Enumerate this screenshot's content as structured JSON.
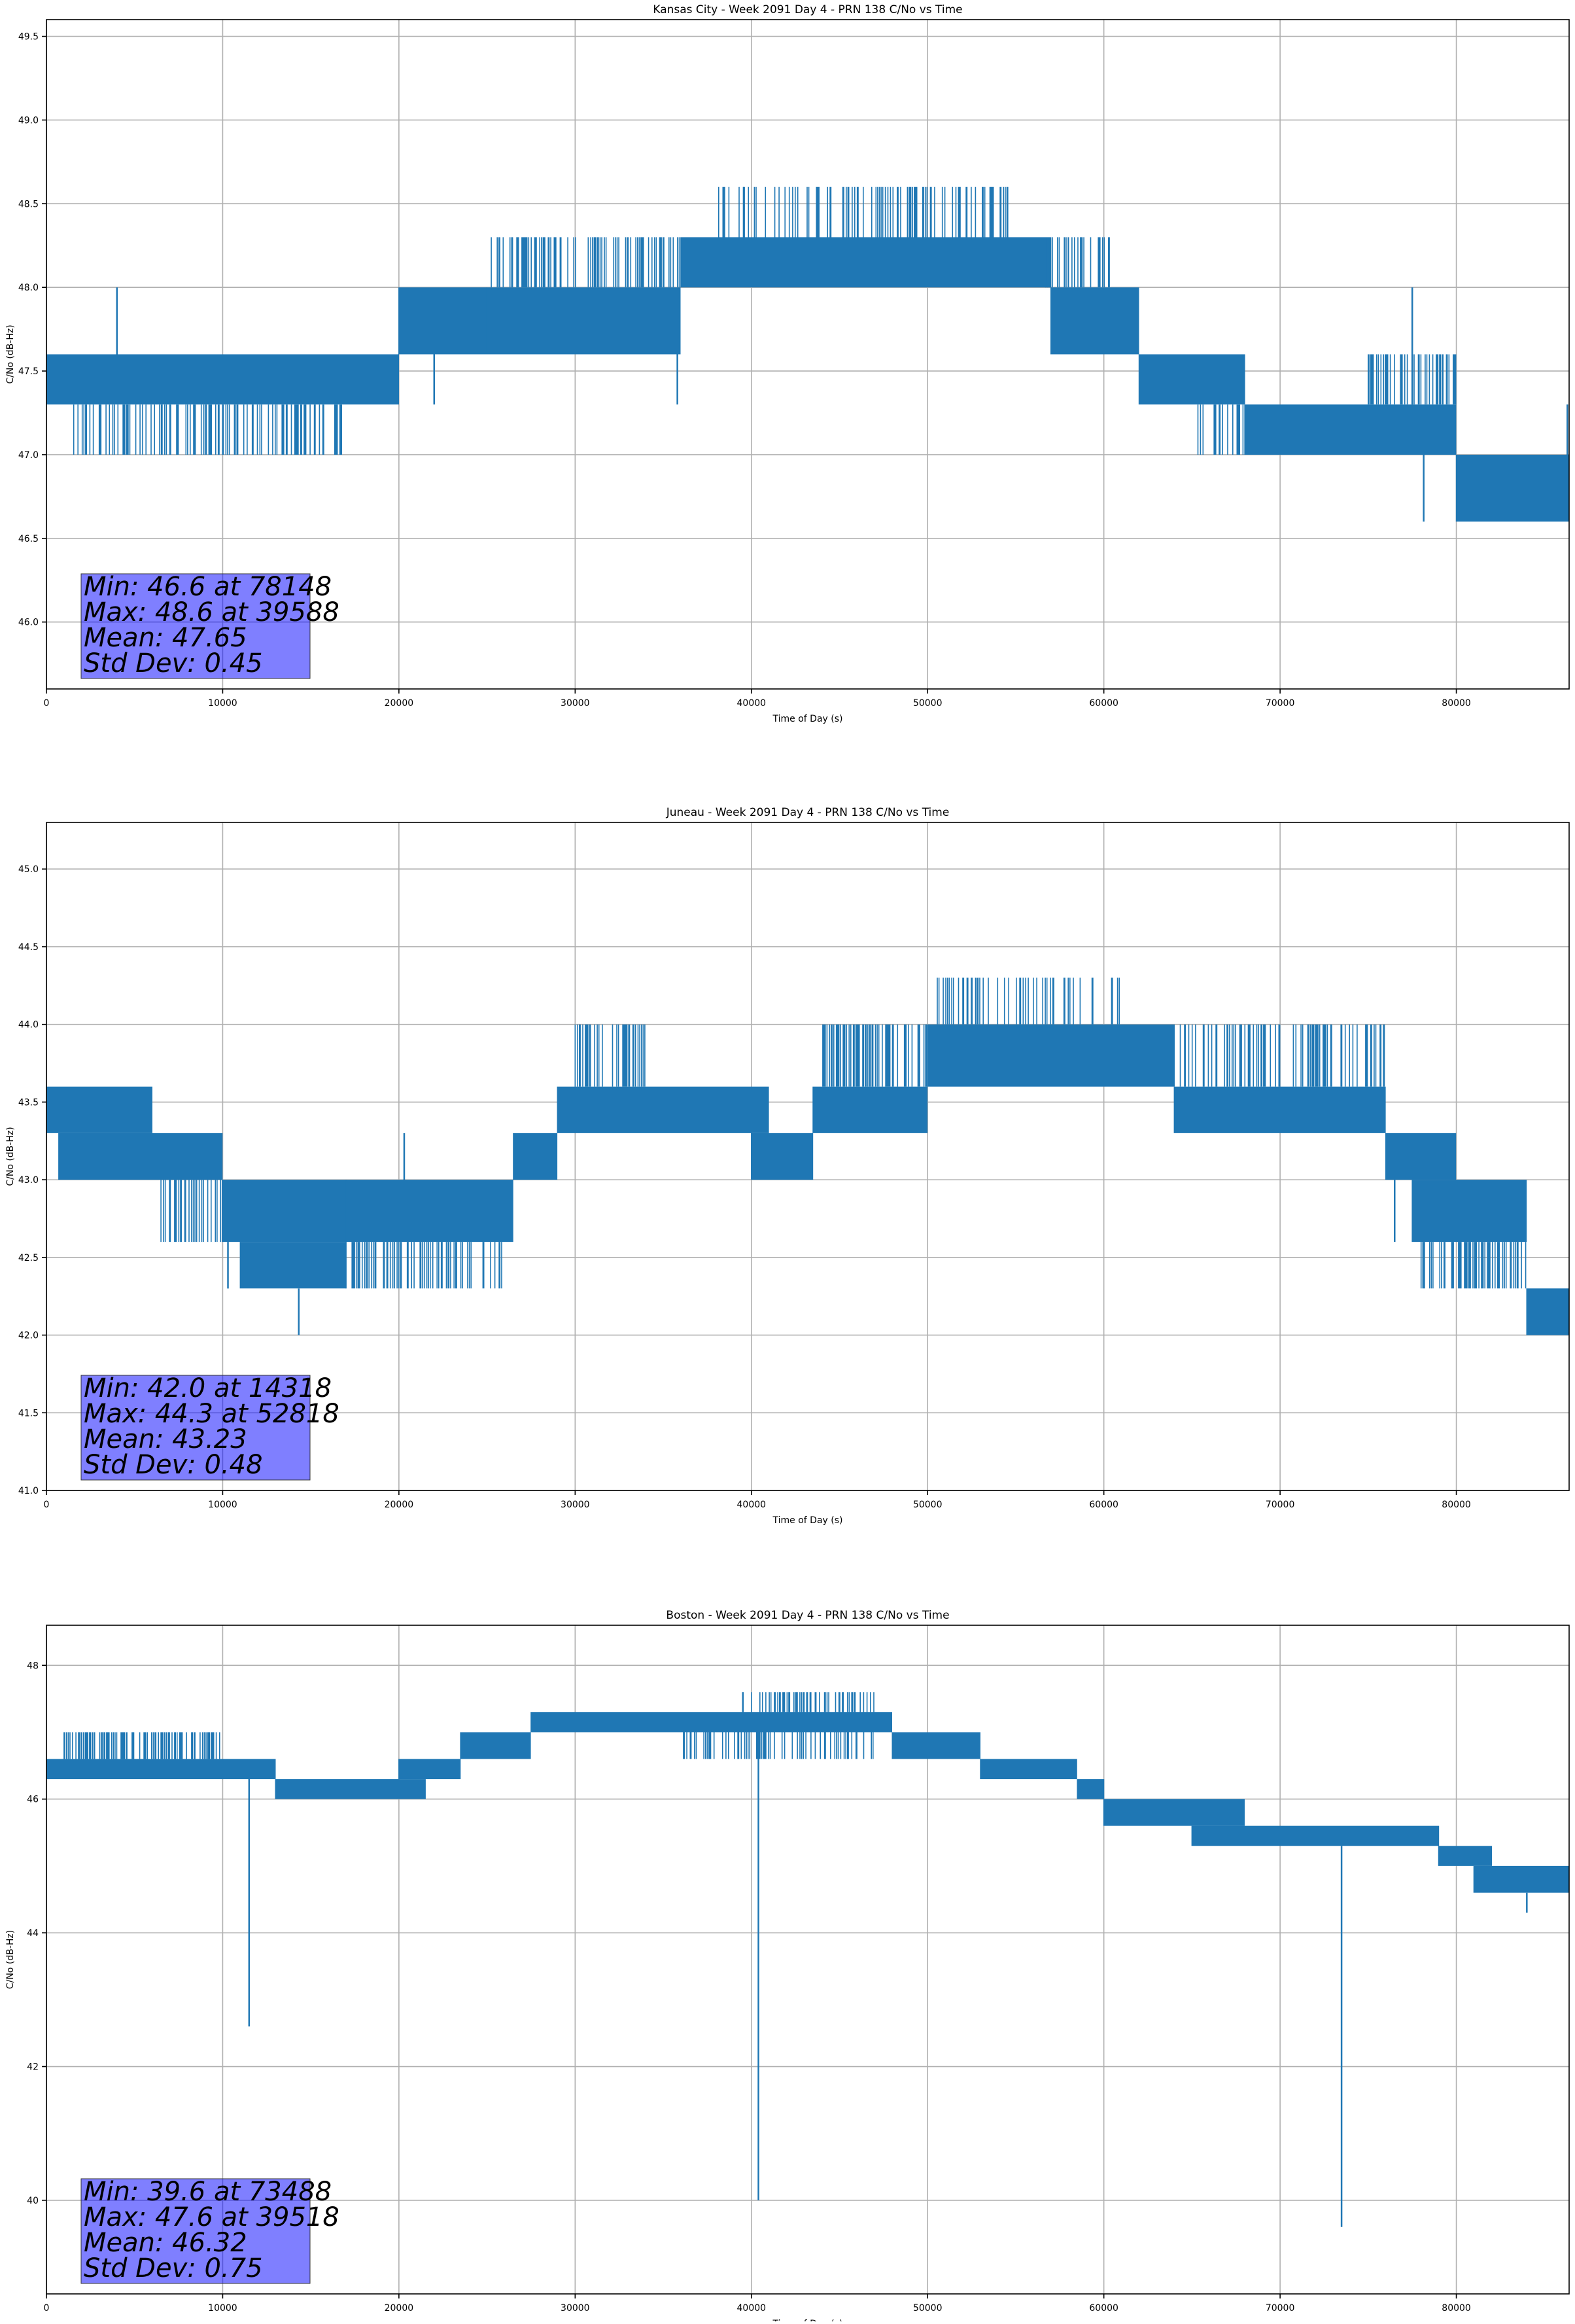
{
  "colors": {
    "line": "#1f77b4",
    "grid": "#b0b0b0",
    "axis": "#000000",
    "stats_box_fill": "#0000ff",
    "stats_box_alpha": 0.5
  },
  "chart_data": [
    {
      "type": "line",
      "title": "Kansas City - Week 2091 Day 4 - PRN 138 C/No vs Time",
      "xlabel": "Time of Day (s)",
      "ylabel": "C/No (dB-Hz)",
      "xlim": [
        0,
        86400
      ],
      "ylim": [
        45.6,
        49.6
      ],
      "xticks": [
        0,
        10000,
        20000,
        30000,
        40000,
        50000,
        60000,
        70000,
        80000
      ],
      "yticks": [
        46.0,
        46.5,
        47.0,
        47.5,
        48.0,
        48.5,
        49.0,
        49.5
      ],
      "ytick_decimals": 1,
      "grid": true,
      "stats": [
        "Min: 46.6 at 78148",
        "Max: 48.6 at 39588",
        "Mean: 47.65",
        "Std Dev: 0.45"
      ],
      "series": [
        {
          "segments": [
            {
              "x0": 0,
              "x1": 20000,
              "lo": 47.3,
              "hi": 47.6
            },
            {
              "x0": 1500,
              "x1": 17000,
              "lo": 47.0,
              "hi": 47.3,
              "density": 0.35
            },
            {
              "x0": 20000,
              "x1": 25000,
              "lo": 47.6,
              "hi": 48.0
            },
            {
              "x0": 25000,
              "x1": 36000,
              "lo": 47.6,
              "hi": 48.0
            },
            {
              "x0": 25000,
              "x1": 36000,
              "lo": 48.0,
              "hi": 48.3,
              "density": 0.35
            },
            {
              "x0": 36000,
              "x1": 57000,
              "lo": 48.0,
              "hi": 48.3
            },
            {
              "x0": 38000,
              "x1": 55000,
              "lo": 48.3,
              "hi": 48.6,
              "density": 0.25
            },
            {
              "x0": 57000,
              "x1": 62000,
              "lo": 47.6,
              "hi": 48.0
            },
            {
              "x0": 56500,
              "x1": 60500,
              "lo": 48.0,
              "hi": 48.3,
              "density": 0.4
            },
            {
              "x0": 62000,
              "x1": 68000,
              "lo": 47.3,
              "hi": 47.6
            },
            {
              "x0": 65000,
              "x1": 68000,
              "lo": 47.0,
              "hi": 47.3,
              "density": 0.3
            },
            {
              "x0": 68000,
              "x1": 80000,
              "lo": 47.0,
              "hi": 47.3
            },
            {
              "x0": 75000,
              "x1": 80000,
              "lo": 47.3,
              "hi": 47.6,
              "density": 0.4
            },
            {
              "x0": 80000,
              "x1": 86400,
              "lo": 46.6,
              "hi": 47.0
            }
          ],
          "spikes": [
            {
              "x": 4000,
              "y": 48.0
            },
            {
              "x": 22000,
              "y": 47.3
            },
            {
              "x": 35800,
              "y": 47.3
            },
            {
              "x": 39588,
              "y": 48.6
            },
            {
              "x": 77500,
              "y": 48.0
            },
            {
              "x": 78148,
              "y": 46.6
            },
            {
              "x": 86300,
              "y": 47.3
            }
          ]
        }
      ]
    },
    {
      "type": "line",
      "title": "Juneau - Week 2091 Day 4 - PRN 138 C/No vs Time",
      "xlabel": "Time of Day (s)",
      "ylabel": "C/No (dB-Hz)",
      "xlim": [
        0,
        86400
      ],
      "ylim": [
        41.0,
        45.3
      ],
      "xticks": [
        0,
        10000,
        20000,
        30000,
        40000,
        50000,
        60000,
        70000,
        80000
      ],
      "yticks": [
        41.0,
        41.5,
        42.0,
        42.5,
        43.0,
        43.5,
        44.0,
        44.5,
        45.0
      ],
      "ytick_decimals": 1,
      "grid": true,
      "stats": [
        "Min: 42.0 at 14318",
        "Max: 44.3 at 52818",
        "Mean: 43.23",
        "Std Dev: 0.48"
      ],
      "series": [
        {
          "segments": [
            {
              "x0": 0,
              "x1": 6000,
              "lo": 43.3,
              "hi": 43.6
            },
            {
              "x0": 700,
              "x1": 10000,
              "lo": 43.0,
              "hi": 43.3
            },
            {
              "x0": 6500,
              "x1": 10000,
              "lo": 42.6,
              "hi": 43.0,
              "density": 0.4
            },
            {
              "x0": 10000,
              "x1": 17000,
              "lo": 42.6,
              "hi": 43.0
            },
            {
              "x0": 11000,
              "x1": 17000,
              "lo": 42.3,
              "hi": 42.6
            },
            {
              "x0": 17000,
              "x1": 26500,
              "lo": 42.6,
              "hi": 43.0
            },
            {
              "x0": 17000,
              "x1": 26000,
              "lo": 42.3,
              "hi": 42.6,
              "density": 0.35
            },
            {
              "x0": 26500,
              "x1": 29000,
              "lo": 43.0,
              "hi": 43.3
            },
            {
              "x0": 29000,
              "x1": 41000,
              "lo": 43.3,
              "hi": 43.6
            },
            {
              "x0": 30000,
              "x1": 34000,
              "lo": 43.6,
              "hi": 44.0,
              "density": 0.4
            },
            {
              "x0": 40000,
              "x1": 43500,
              "lo": 43.0,
              "hi": 43.3
            },
            {
              "x0": 43500,
              "x1": 50000,
              "lo": 43.3,
              "hi": 43.6
            },
            {
              "x0": 44000,
              "x1": 50000,
              "lo": 43.6,
              "hi": 44.0,
              "density": 0.4
            },
            {
              "x0": 50000,
              "x1": 64000,
              "lo": 43.6,
              "hi": 44.0
            },
            {
              "x0": 50500,
              "x1": 61000,
              "lo": 44.0,
              "hi": 44.3,
              "density": 0.2
            },
            {
              "x0": 64000,
              "x1": 76000,
              "lo": 43.3,
              "hi": 43.6
            },
            {
              "x0": 64000,
              "x1": 76000,
              "lo": 43.6,
              "hi": 44.0,
              "density": 0.3
            },
            {
              "x0": 76000,
              "x1": 80000,
              "lo": 43.0,
              "hi": 43.3
            },
            {
              "x0": 77500,
              "x1": 84000,
              "lo": 42.6,
              "hi": 43.0
            },
            {
              "x0": 78000,
              "x1": 84000,
              "lo": 42.3,
              "hi": 42.6,
              "density": 0.5
            },
            {
              "x0": 84000,
              "x1": 86400,
              "lo": 42.0,
              "hi": 42.3
            }
          ],
          "spikes": [
            {
              "x": 10300,
              "y": 42.3
            },
            {
              "x": 14318,
              "y": 42.0
            },
            {
              "x": 20300,
              "y": 43.3
            },
            {
              "x": 52818,
              "y": 44.3
            },
            {
              "x": 76500,
              "y": 42.6
            }
          ]
        }
      ]
    },
    {
      "type": "line",
      "title": "Boston - Week 2091 Day 4 - PRN 138 C/No vs Time",
      "xlabel": "Time of Day (s)",
      "ylabel": "C/No (dB-Hz)",
      "xlim": [
        0,
        86400
      ],
      "ylim": [
        38.6,
        48.6
      ],
      "xticks": [
        0,
        10000,
        20000,
        30000,
        40000,
        50000,
        60000,
        70000,
        80000
      ],
      "yticks": [
        40,
        42,
        44,
        46,
        48
      ],
      "ytick_decimals": 0,
      "grid": true,
      "stats": [
        "Min: 39.6 at 73488",
        "Max: 47.6 at 39518",
        "Mean: 46.32",
        "Std Dev: 0.75"
      ],
      "series": [
        {
          "segments": [
            {
              "x0": 0,
              "x1": 13000,
              "lo": 46.3,
              "hi": 46.6
            },
            {
              "x0": 1000,
              "x1": 10000,
              "lo": 46.6,
              "hi": 47.0,
              "density": 0.5
            },
            {
              "x0": 13000,
              "x1": 21500,
              "lo": 46.0,
              "hi": 46.3
            },
            {
              "x0": 20000,
              "x1": 23500,
              "lo": 46.3,
              "hi": 46.6
            },
            {
              "x0": 23500,
              "x1": 27500,
              "lo": 46.6,
              "hi": 47.0
            },
            {
              "x0": 27500,
              "x1": 48000,
              "lo": 47.0,
              "hi": 47.3
            },
            {
              "x0": 36000,
              "x1": 47000,
              "lo": 46.6,
              "hi": 47.0,
              "density": 0.35
            },
            {
              "x0": 40000,
              "x1": 47000,
              "lo": 47.3,
              "hi": 47.6,
              "density": 0.4
            },
            {
              "x0": 48000,
              "x1": 53000,
              "lo": 46.6,
              "hi": 47.0
            },
            {
              "x0": 53000,
              "x1": 58500,
              "lo": 46.3,
              "hi": 46.6
            },
            {
              "x0": 58500,
              "x1": 60000,
              "lo": 46.0,
              "hi": 46.3
            },
            {
              "x0": 60000,
              "x1": 68000,
              "lo": 45.6,
              "hi": 46.0
            },
            {
              "x0": 65000,
              "x1": 79000,
              "lo": 45.3,
              "hi": 45.6
            },
            {
              "x0": 79000,
              "x1": 82000,
              "lo": 45.0,
              "hi": 45.3
            },
            {
              "x0": 81000,
              "x1": 86400,
              "lo": 44.6,
              "hi": 45.0
            }
          ],
          "spikes": [
            {
              "x": 11500,
              "y": 42.6
            },
            {
              "x": 39518,
              "y": 47.6
            },
            {
              "x": 40400,
              "y": 40.0
            },
            {
              "x": 73488,
              "y": 39.6
            },
            {
              "x": 84000,
              "y": 44.3
            }
          ]
        }
      ]
    }
  ]
}
